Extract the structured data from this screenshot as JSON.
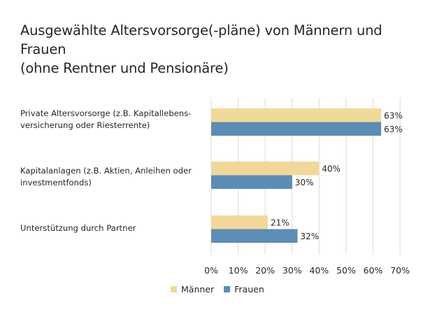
{
  "title_lines": [
    "Ausgewählte Altersvorsorge(-pläne) von Männern und Frauen",
    "(ohne Rentner und Pensionäre)"
  ],
  "chart_data": {
    "type": "bar",
    "orientation": "horizontal",
    "title": "Ausgewählte Altersvorsorge(-pläne) von Männern und Frauen (ohne Rentner und Pensionäre)",
    "categories": [
      {
        "lines": [
          "Private Altersvorsorge (z.B. Kapitallebens-",
          "versicherung oder Riesterrente)"
        ]
      },
      {
        "lines": [
          "Kapitalanlagen (z.B. Aktien, Anleihen oder",
          "investmentfonds)"
        ]
      },
      {
        "lines": [
          "Unterstützung durch Partner"
        ]
      }
    ],
    "series": [
      {
        "name": "Männer",
        "color": "#f2d898",
        "values": [
          63,
          40,
          21
        ],
        "labels": [
          "63%",
          "40%",
          "21%"
        ]
      },
      {
        "name": "Frauen",
        "color": "#5b8db5",
        "values": [
          63,
          30,
          32
        ],
        "labels": [
          "63%",
          "30%",
          "32%"
        ]
      }
    ],
    "xlim": [
      0,
      70
    ],
    "xticks": [
      0,
      10,
      20,
      30,
      40,
      50,
      60,
      70
    ],
    "xtick_labels": [
      "0%",
      "10%",
      "20%",
      "30%",
      "40%",
      "50%",
      "60%",
      "70%"
    ],
    "grid": true,
    "legend_position": "bottom"
  }
}
